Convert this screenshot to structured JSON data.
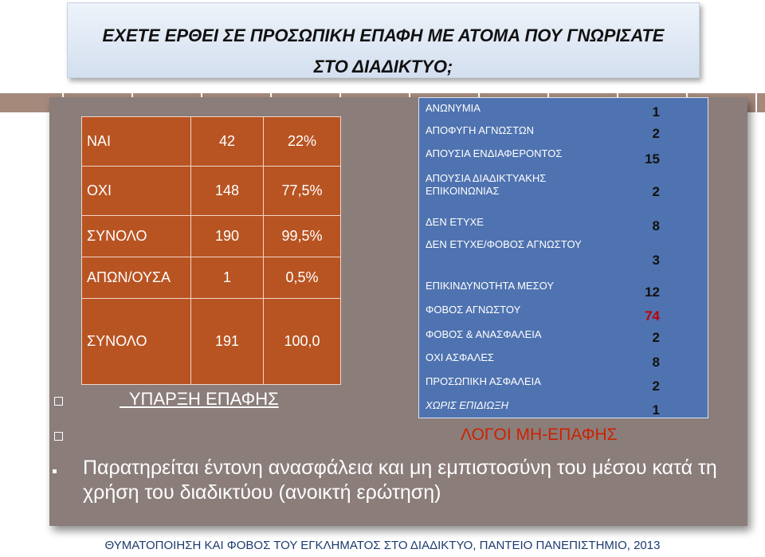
{
  "title": {
    "line1": "ΕΧΕΤΕ ΕΡΘΕΙ ΣΕ ΠΡΟΣΩΠΙΚΗ ΕΠΑΦΗ ΜΕ ΑΤΟΜΑ ΠΟΥ ΓΝΩΡΙΣΑΤΕ",
    "line2": "ΣΤΟ ΔΙΑΔΙΚΤΥΟ;"
  },
  "contact_table": [
    {
      "label": "ΝΑΙ",
      "count": "42",
      "percent": "22%"
    },
    {
      "label": "ΟΧΙ",
      "count": "148",
      "percent": "77,5%"
    },
    {
      "label": "ΣΥΝΟΛΟ",
      "count": "190",
      "percent": "99,5%"
    },
    {
      "label": "ΑΠΩΝ/ΟΥΣΑ",
      "count": "1",
      "percent": "0,5%"
    },
    {
      "label": "ΣΥΝΟΛΟ",
      "count": "191",
      "percent": "100,0"
    }
  ],
  "left_caption": "ΥΠΑΡΞΗ ΕΠΑΦΗΣ",
  "reasons": [
    {
      "label": "ΑΝΩΝΥΜΙΑ",
      "value": "1"
    },
    {
      "label": "ΑΠΟΦΥΓΗ ΑΓΝΩΣΤΩΝ",
      "value": "2"
    },
    {
      "label": "ΑΠΟΥΣΙΑ ΕΝΔΙΑΦΕΡΟΝΤΟΣ",
      "value": "15"
    },
    {
      "label": "ΑΠΟΥΣΙΑ ΔΙΑΔΙΚΤΥΑΚΗΣ\nΕΠΙΚΟΙΝΩΝΙΑΣ",
      "value": "2"
    },
    {
      "label": "ΔΕΝ ΕΤΥΧΕ",
      "value": "8"
    },
    {
      "label": "ΔΕΝ ΕΤΥΧΕ/ΦΟΒΟΣ ΑΓΝΩΣΤΟΥ",
      "value": "3"
    },
    {
      "label": "ΕΠΙΚΙΝΔΥΝΟΤΗΤΑ ΜΕΣΟΥ",
      "value": "12"
    },
    {
      "label": "ΦΟΒΟΣ ΑΓΝΩΣΤΟΥ",
      "value": "74"
    },
    {
      "label": "ΦΟΒΟΣ & ΑΝΑΣΦΑΛΕΙΑ",
      "value": "2"
    },
    {
      "label": "ΟΧΙ ΑΣΦΑΛΕΣ",
      "value": "8"
    },
    {
      "label": "ΠΡΟΣΩΠΙΚΗ ΑΣΦΑΛΕΙΑ",
      "value": "2"
    },
    {
      "label": "ΧΩΡΙΣ ΕΠΙΔΙΩΞΗ",
      "value": "1"
    }
  ],
  "right_caption": "ΛΟΓΟΙ ΜΗ-ΕΠΑΦΗΣ",
  "body_text": "Παρατηρείται έντονη ανασφάλεια και μη εμπιστοσύνη του μέσου κατά τη χρήση του διαδικτύου    (ανοικτή ερώτηση)",
  "footer": "ΘΥΜΑΤΟΠΟΙΗΣΗ ΚΑΙ ΦΟΒΟΣ ΤΟΥ ΕΓΚΛΗΜΑΤΟΣ ΣΤΟ ΔΙΑΔΙΚΤΥΟ, ΠΑΝΤΕΙΟ ΠΑΝΕΠΙΣΤΗΜΙΟ, 2013",
  "colors": {
    "table_fill": "#b85422",
    "panel_fill": "#4f73b0",
    "card_fill": "#8a7d7a",
    "caption_red": "#cc2200",
    "highlight_value": "#c00000"
  }
}
